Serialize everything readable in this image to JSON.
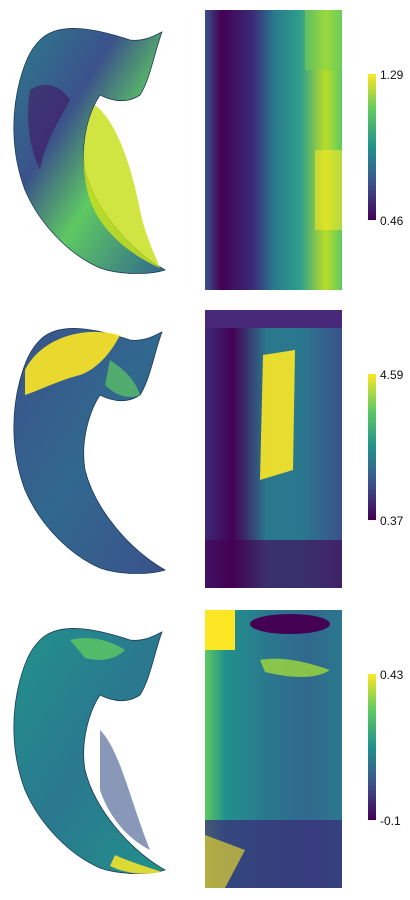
{
  "panels": [
    {
      "colorbar": {
        "max_label": "1.29",
        "min_label": "0.46"
      }
    },
    {
      "colorbar": {
        "max_label": "4.59",
        "min_label": "0.37"
      }
    },
    {
      "colorbar": {
        "max_label": "0.43",
        "min_label": "-0.1"
      }
    }
  ],
  "colormap": "viridis",
  "colors": [
    "#440154",
    "#3b528b",
    "#21918c",
    "#5ec962",
    "#fde725"
  ]
}
